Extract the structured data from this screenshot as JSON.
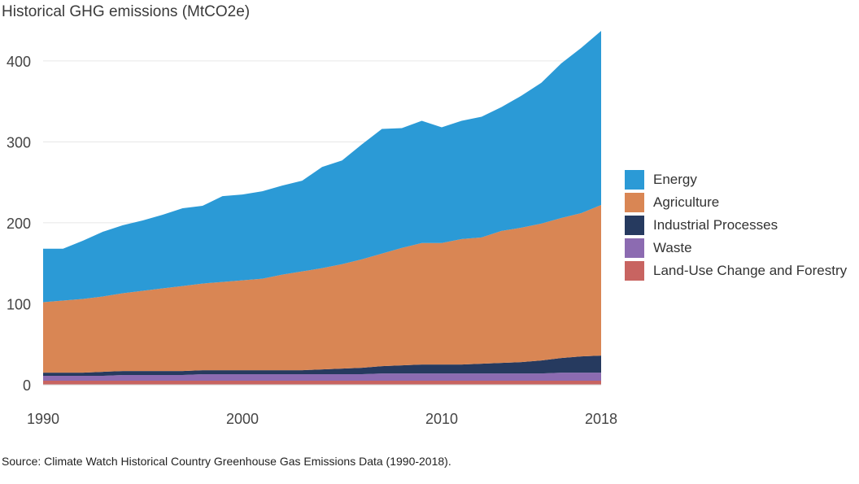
{
  "chart_data": {
    "type": "area",
    "stacked": true,
    "title": "Historical GHG emissions (MtCO2e)",
    "source": "Source: Climate Watch Historical Country Greenhouse Gas Emissions Data (1990-2018).",
    "xlim": [
      1990,
      2018
    ],
    "ylim": [
      0,
      430
    ],
    "x_ticks": [
      1990,
      2000,
      2010,
      2018
    ],
    "y_ticks": [
      0,
      100,
      200,
      300,
      400
    ],
    "grid": "horizontal",
    "legend_position": "right",
    "x": [
      1990,
      1991,
      1992,
      1993,
      1994,
      1995,
      1996,
      1997,
      1998,
      1999,
      2000,
      2001,
      2002,
      2003,
      2004,
      2005,
      2006,
      2007,
      2008,
      2009,
      2010,
      2011,
      2012,
      2013,
      2014,
      2015,
      2016,
      2017,
      2018
    ],
    "series": [
      {
        "name": "Land-Use Change and Forestry",
        "color": "#c86461",
        "values": [
          5,
          5,
          5,
          5,
          5,
          5,
          5,
          5,
          5,
          5,
          5,
          5,
          5,
          5,
          5,
          5,
          5,
          5,
          5,
          5,
          5,
          5,
          5,
          5,
          5,
          5,
          5,
          5,
          5
        ]
      },
      {
        "name": "Waste",
        "color": "#8c6bb1",
        "values": [
          6,
          6,
          6,
          6,
          7,
          7,
          7,
          7,
          8,
          8,
          8,
          8,
          8,
          8,
          8,
          8,
          8,
          9,
          9,
          9,
          9,
          9,
          9,
          9,
          9,
          9,
          10,
          10,
          10
        ]
      },
      {
        "name": "Industrial Processes",
        "color": "#263a5f",
        "values": [
          4,
          4,
          4,
          5,
          5,
          5,
          5,
          5,
          5,
          5,
          5,
          5,
          5,
          5,
          6,
          7,
          8,
          9,
          10,
          11,
          11,
          11,
          12,
          13,
          14,
          16,
          18,
          20,
          21
        ]
      },
      {
        "name": "Agriculture",
        "color": "#d98654",
        "values": [
          87,
          89,
          91,
          93,
          96,
          99,
          102,
          105,
          107,
          109,
          111,
          113,
          118,
          122,
          125,
          129,
          134,
          139,
          145,
          150,
          150,
          155,
          156,
          163,
          166,
          169,
          173,
          177,
          186
        ]
      },
      {
        "name": "Energy",
        "color": "#2b9ad6",
        "values": [
          66,
          64,
          72,
          80,
          84,
          87,
          91,
          96,
          96,
          106,
          106,
          108,
          110,
          112,
          125,
          128,
          142,
          154,
          148,
          151,
          143,
          146,
          149,
          153,
          163,
          174,
          191,
          204,
          215
        ]
      }
    ]
  }
}
